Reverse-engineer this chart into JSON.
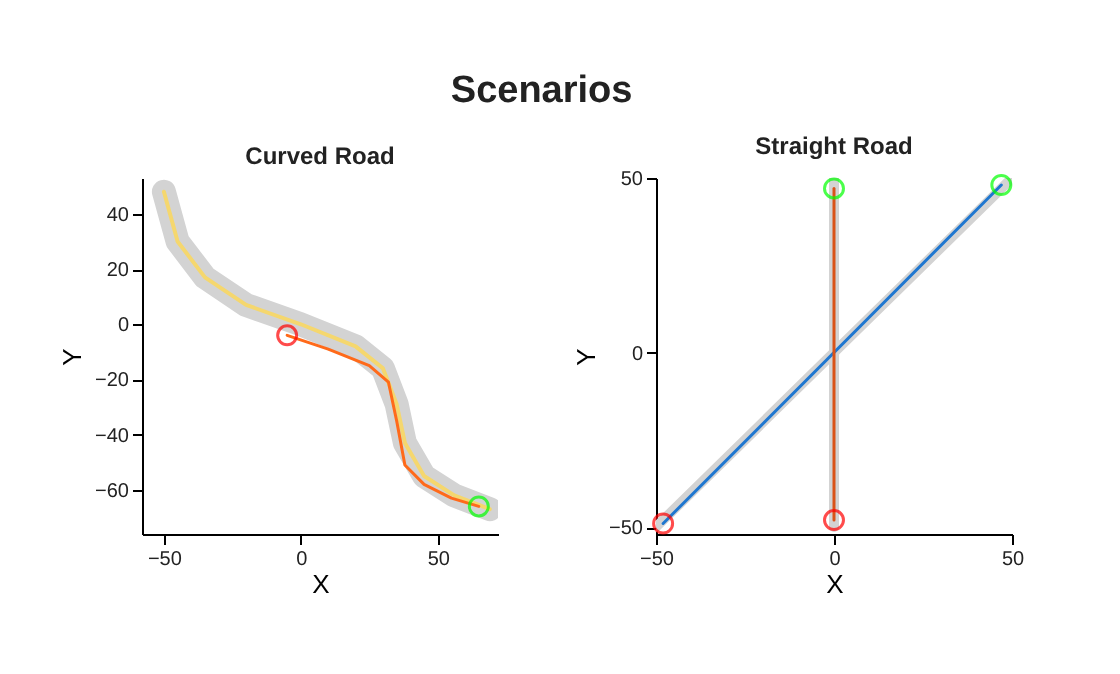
{
  "chart_data": [
    {
      "type": "other",
      "title": "Scenarios"
    },
    {
      "type": "line",
      "title": "Curved Road",
      "xlabel": "X",
      "ylabel": "Y",
      "xlim": [
        -58,
        72
      ],
      "ylim": [
        -76,
        53
      ],
      "xticks": [
        -50,
        0,
        50
      ],
      "yticks": [
        -60,
        -40,
        -20,
        0,
        20,
        40
      ],
      "series": [
        {
          "color": "#d3d3d3",
          "x": [
            -50,
            -45,
            -35,
            -20,
            0,
            20,
            30,
            35,
            38,
            45,
            56,
            69
          ],
          "values": [
            48,
            30,
            17,
            7,
            0,
            -8,
            -16,
            -29,
            -43,
            -55,
            -62,
            -67
          ]
        },
        {
          "color": "#f5d76e",
          "x": [
            -50,
            -45,
            -35,
            -20,
            0,
            20,
            30,
            35,
            38,
            45,
            56,
            69
          ],
          "values": [
            48,
            30,
            17,
            7,
            0,
            -8,
            -16,
            -29,
            -43,
            -55,
            -62,
            -67
          ]
        },
        {
          "color": "#ff6a1a",
          "x": [
            -5,
            10,
            25,
            32,
            35,
            38,
            45,
            55,
            65
          ],
          "values": [
            -4,
            -9,
            -15,
            -21,
            -35,
            -51,
            -58,
            -63,
            -66
          ]
        },
        {
          "type": "scatter",
          "marker": "circle",
          "color": "#ff0000",
          "x": [
            -5
          ],
          "values": [
            -4
          ]
        },
        {
          "type": "scatter",
          "marker": "circle",
          "color": "#00ff00",
          "x": [
            65
          ],
          "values": [
            -66
          ]
        }
      ]
    },
    {
      "type": "line",
      "title": "Straight Road",
      "xlabel": "X",
      "ylabel": "Y",
      "xlim": [
        -50,
        50
      ],
      "ylim": [
        -52,
        50
      ],
      "xticks": [
        -50,
        0,
        50
      ],
      "yticks": [
        -50,
        0,
        50
      ],
      "series": [
        {
          "color": "#d3d3d3",
          "x": [
            -50,
            50
          ],
          "values": [
            -50,
            50
          ]
        },
        {
          "color": "#d3d3d3",
          "x": [
            0,
            0
          ],
          "values": [
            -50,
            50
          ]
        },
        {
          "color": "#1f77d0",
          "x": [
            -48,
            47
          ],
          "values": [
            -49,
            48
          ]
        },
        {
          "color": "#d95319",
          "x": [
            0,
            0
          ],
          "values": [
            -48,
            47
          ]
        },
        {
          "type": "scatter",
          "marker": "circle",
          "color": "#ff0000",
          "x": [
            -48,
            0
          ],
          "values": [
            -49,
            -48
          ]
        },
        {
          "type": "scatter",
          "marker": "circle",
          "color": "#00ff00",
          "x": [
            47,
            0
          ],
          "values": [
            48,
            47
          ]
        }
      ]
    }
  ]
}
